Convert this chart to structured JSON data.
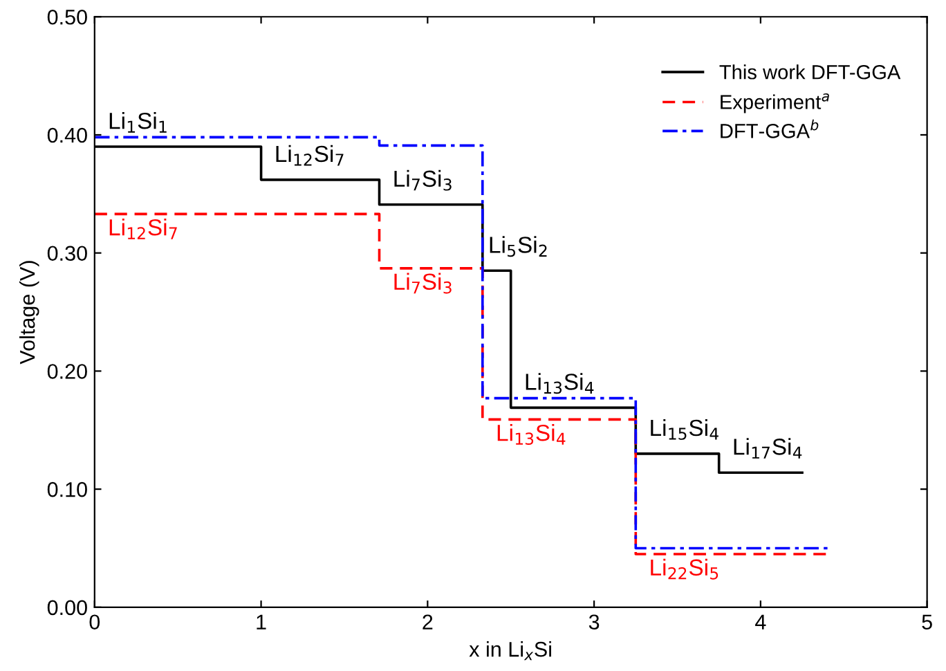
{
  "chart_data": {
    "type": "step",
    "xlabel": "x in Li$_{x}$Si",
    "ylabel": "Voltage (V)",
    "xlim": [
      0,
      5
    ],
    "ylim": [
      0,
      0.5
    ],
    "xticks": [
      0,
      1,
      2,
      3,
      4,
      5
    ],
    "yticks": [
      {
        "value": 0,
        "label": "0.00"
      },
      {
        "value": 0.1,
        "label": "0.10"
      },
      {
        "value": 0.2,
        "label": "0.20"
      },
      {
        "value": 0.3,
        "label": "0.30"
      },
      {
        "value": 0.4,
        "label": "0.40"
      },
      {
        "value": 0.5,
        "label": "0.50"
      }
    ],
    "grid": false,
    "legend": "top right",
    "series": [
      {
        "name": "This work DFT-GGA",
        "color": "#000000",
        "line_style": "solid",
        "x": [
          0,
          1,
          1.71,
          2.33,
          2.5,
          3.25,
          3.75,
          4.25
        ],
        "values": [
          0.39,
          0.362,
          0.341,
          0.285,
          0.169,
          0.13,
          0.114,
          0.114
        ],
        "value_labels": [
          "Li$_{1}$Si$_{1}$",
          "Li$_{12}$Si$_{7}$",
          "Li$_{7}$Si$_{3}$",
          "Li$_{5}$Si$_{2}$",
          "Li$_{13}$Si$_{4}$",
          "Li$_{15}$Si$_{4}$",
          "Li$_{17}$Si$_{4}$",
          null
        ]
      },
      {
        "name": "Experiment$^{a}$",
        "color": "#ff0000",
        "line_style": "dashed",
        "x": [
          0,
          1.71,
          2.33,
          3.25,
          4.41
        ],
        "values": [
          0.333,
          0.287,
          0.159,
          0.045,
          0.045
        ],
        "value_labels": [
          "Li$_{12}$Si$_{7}$",
          "Li$_{7}$Si$_{3}$",
          "Li$_{13}$Si$_{4}$",
          "Li$_{22}$Si$_{5}$",
          null
        ]
      },
      {
        "name": "DFT-GGA$^{b}$",
        "color": "#0000ff",
        "line_style": "dashdot",
        "x": [
          0,
          1.71,
          2.33,
          3.25,
          4.41
        ],
        "values": [
          0.398,
          0.391,
          0.177,
          0.05,
          0.05
        ]
      }
    ]
  }
}
